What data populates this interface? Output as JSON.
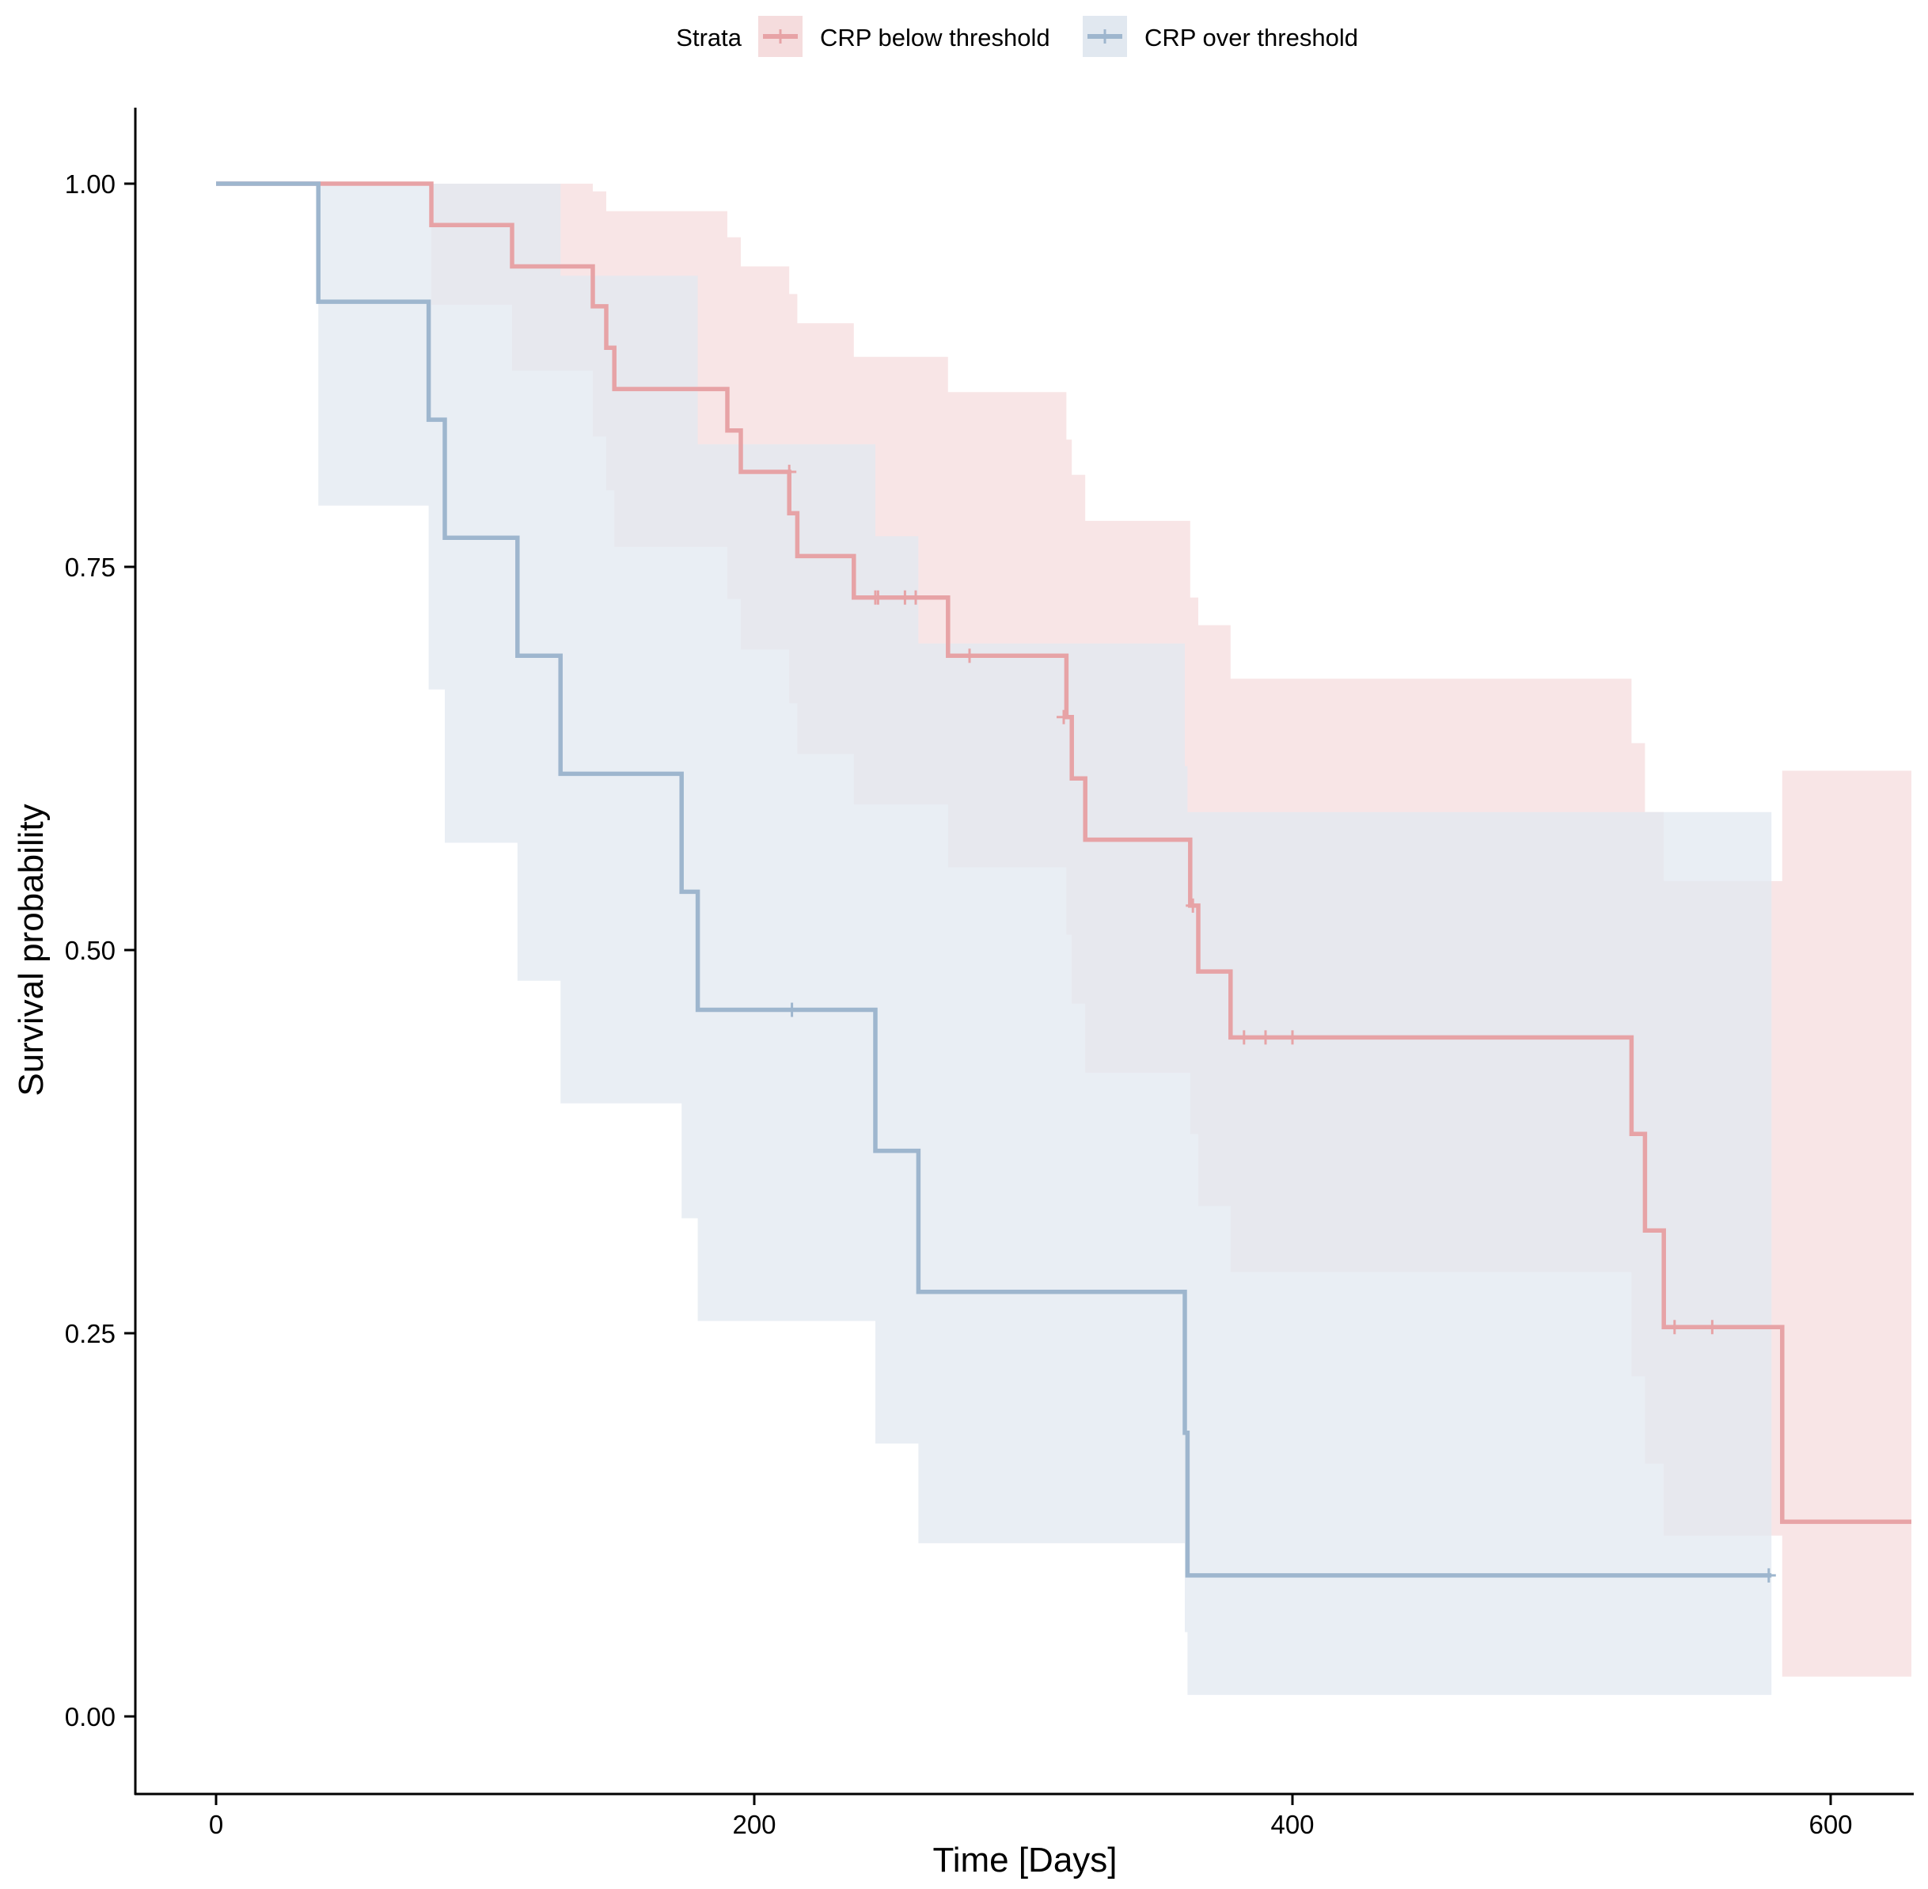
{
  "chart_data": {
    "type": "line",
    "subtype": "kaplan-meier-step",
    "xlabel": "Time [Days]",
    "ylabel": "Survival probability",
    "xlim": [
      -30,
      630
    ],
    "ylim": [
      -0.05,
      1.05
    ],
    "xticks": [
      0,
      200,
      400,
      600
    ],
    "xtick_labels": [
      "0",
      "200",
      "400",
      "600"
    ],
    "yticks": [
      0,
      0.25,
      0.5,
      0.75,
      1
    ],
    "ytick_labels": [
      "0.00",
      "0.25",
      "0.50",
      "0.75",
      "1.00"
    ],
    "grid": false,
    "legend": {
      "title": "Strata",
      "position": "top",
      "entries": [
        "CRP below threshold",
        "CRP over threshold"
      ]
    },
    "series": [
      {
        "name": "CRP below threshold",
        "color": "#E7A3A6",
        "fill": "#F5DCDD",
        "x_end": 630,
        "steps": [
          [
            0,
            1.0,
            1.0,
            1.0
          ],
          [
            40,
            1.0,
            1.0,
            1.0
          ],
          [
            80,
            0.973,
            0.921,
            1.0
          ],
          [
            110,
            0.946,
            0.878,
            1.0
          ],
          [
            140,
            0.92,
            0.835,
            0.995
          ],
          [
            145,
            0.893,
            0.8,
            0.982
          ],
          [
            148,
            0.866,
            0.763,
            0.982
          ],
          [
            190,
            0.839,
            0.729,
            0.965
          ],
          [
            195,
            0.812,
            0.696,
            0.946
          ],
          [
            213,
            0.785,
            0.661,
            0.928
          ],
          [
            216,
            0.757,
            0.628,
            0.909
          ],
          [
            237,
            0.73,
            0.595,
            0.887
          ],
          [
            272,
            0.692,
            0.554,
            0.864
          ],
          [
            316,
            0.652,
            0.51,
            0.833
          ],
          [
            318,
            0.612,
            0.465,
            0.81
          ],
          [
            323,
            0.572,
            0.42,
            0.78
          ],
          [
            362,
            0.529,
            0.38,
            0.73
          ],
          [
            365,
            0.486,
            0.333,
            0.712
          ],
          [
            377,
            0.443,
            0.29,
            0.677
          ],
          [
            526,
            0.38,
            0.222,
            0.635
          ],
          [
            531,
            0.317,
            0.165,
            0.59
          ],
          [
            538,
            0.254,
            0.118,
            0.545
          ],
          [
            582,
            0.127,
            0.026,
            0.617
          ]
        ],
        "censor_times": [
          213,
          245,
          246,
          256,
          260,
          280,
          315,
          363,
          382,
          390,
          400,
          542,
          556
        ],
        "censor_survival": [
          0.812,
          0.73,
          0.73,
          0.73,
          0.73,
          0.692,
          0.652,
          0.529,
          0.443,
          0.443,
          0.443,
          0.254,
          0.254
        ]
      },
      {
        "name": "CRP over threshold",
        "color": "#9EB6CE",
        "fill": "#E1E8F0",
        "x_end": 578,
        "steps": [
          [
            0,
            1.0,
            1.0,
            1.0
          ],
          [
            38,
            0.923,
            0.79,
            1.0
          ],
          [
            79,
            0.846,
            0.67,
            1.0
          ],
          [
            85,
            0.769,
            0.57,
            1.0
          ],
          [
            112,
            0.692,
            0.48,
            1.0
          ],
          [
            128,
            0.615,
            0.4,
            0.94
          ],
          [
            173,
            0.538,
            0.325,
            0.94
          ],
          [
            179,
            0.461,
            0.258,
            0.83
          ],
          [
            245,
            0.369,
            0.178,
            0.77
          ],
          [
            261,
            0.277,
            0.113,
            0.7
          ],
          [
            360,
            0.185,
            0.055,
            0.62
          ],
          [
            361,
            0.092,
            0.014,
            0.59
          ]
        ],
        "censor_times": [
          214,
          577
        ],
        "censor_survival": [
          0.461,
          0.092
        ]
      }
    ]
  }
}
